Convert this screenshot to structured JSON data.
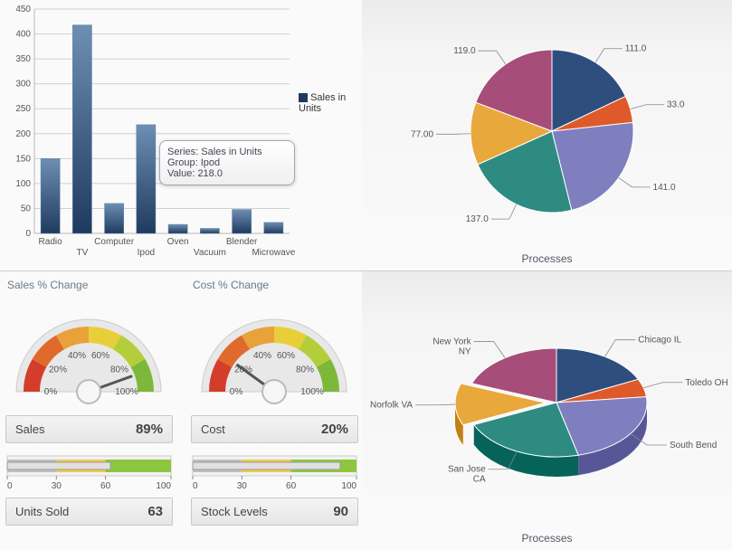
{
  "bar_chart": {
    "type": "bar",
    "categories": [
      "Radio",
      "TV",
      "Computer",
      "Ipod",
      "Oven",
      "Vacuum",
      "Blender",
      "Microwave"
    ],
    "values": [
      150,
      418,
      60,
      218,
      18,
      10,
      48,
      22
    ],
    "bar_fill_top": "#6d8fb3",
    "bar_fill_bottom": "#1f3a5f",
    "ylim": [
      0,
      450
    ],
    "ytick_step": 50,
    "axis_color": "#b8b8b8",
    "grid_color": "#d0d0d0",
    "legend_label": "Sales in Units",
    "legend_color": "#1f3a5f",
    "tooltip": {
      "series": "Sales in Units",
      "group": "Ipod",
      "value": "218.0"
    }
  },
  "pie1": {
    "type": "pie",
    "title": "Processes",
    "slices": [
      {
        "label": "111.0",
        "value": 111,
        "color": "#2e4e7e"
      },
      {
        "label": "33.0",
        "value": 33,
        "color": "#de5a2b"
      },
      {
        "label": "141.0",
        "value": 141,
        "color": "#7f7fbf"
      },
      {
        "label": "137.0",
        "value": 137,
        "color": "#2e8b82"
      },
      {
        "label": "77.00",
        "value": 77,
        "color": "#e9a83c"
      },
      {
        "label": "119.0",
        "value": 119,
        "color": "#a64d79"
      }
    ],
    "stroke": "#ffffff"
  },
  "pie2": {
    "type": "pie",
    "title": "Processes",
    "slices": [
      {
        "label": "Chicago IL",
        "value": 111,
        "color": "#2e4e7e"
      },
      {
        "label": "Toledo OH",
        "value": 33,
        "color": "#de5a2b"
      },
      {
        "label": "South Bend",
        "value": 141,
        "color": "#7f7fbf"
      },
      {
        "label": "San Jose CA",
        "value": 137,
        "color": "#2e8b82"
      },
      {
        "label": "Norfolk VA",
        "value": 77,
        "color": "#e9a83c"
      },
      {
        "label": "New York NY",
        "value": 119,
        "color": "#a64d79"
      }
    ]
  },
  "gauges": {
    "sales_title": "Sales % Change",
    "cost_title": "Cost % Change",
    "arc_colors": [
      "#d43d2a",
      "#e06a2b",
      "#e8a23a",
      "#e8cf3a",
      "#b4ce3a",
      "#7db83a"
    ],
    "tick_labels": [
      "0%",
      "20%",
      "40%",
      "60%",
      "80%",
      "100%"
    ],
    "needle_color": "#555",
    "hub_color": "#f6f6f6",
    "sales": {
      "label": "Sales",
      "value": 89,
      "display": "89%"
    },
    "cost": {
      "label": "Cost",
      "value": 20,
      "display": "20%"
    }
  },
  "bullets": {
    "units": {
      "label": "Units Sold",
      "value": 63,
      "range_colors": [
        "#bfbfbf",
        "#f0c94a",
        "#8dc63f"
      ],
      "bar_color": "#e0e0e0",
      "ticks": [
        0,
        30,
        60,
        100
      ]
    },
    "stock": {
      "label": "Stock Levels",
      "value": 90,
      "range_colors": [
        "#bfbfbf",
        "#f0c94a",
        "#8dc63f"
      ],
      "bar_color": "#e0e0e0",
      "ticks": [
        0,
        30,
        60,
        100
      ]
    }
  }
}
